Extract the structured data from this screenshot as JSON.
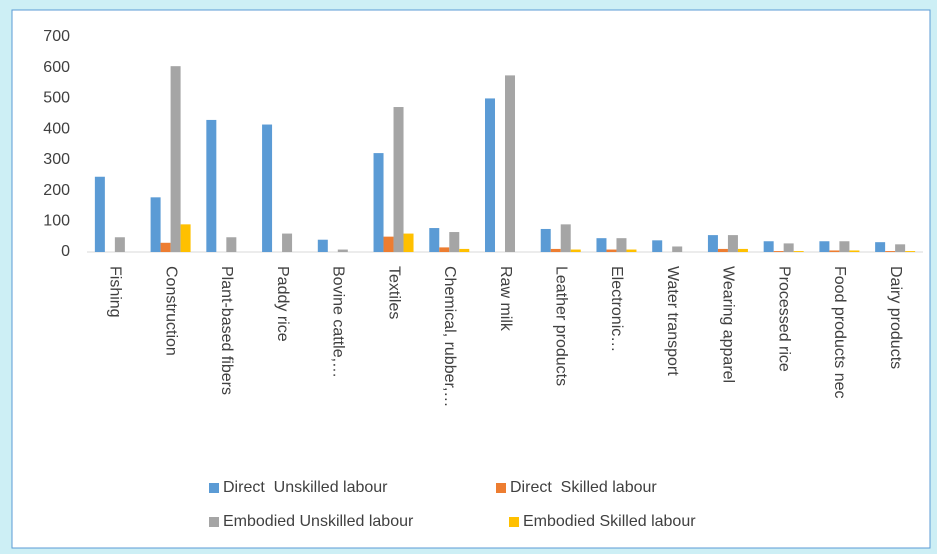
{
  "chart_data": {
    "type": "bar",
    "categories": [
      "Fishing",
      "Construction",
      "Plant-based fibers",
      "Paddy rice",
      "Bovine cattle,…",
      "Textiles",
      "Chemical, rubber,…",
      "Raw milk",
      "Leather products",
      "Electronic…",
      "Water transport",
      "Wearing apparel",
      "Processed rice",
      "Food products nec",
      "Dairy products"
    ],
    "series": [
      {
        "name": "Direct  Unskilled labour",
        "color": "#5b9bd5",
        "values": [
          245,
          178,
          430,
          415,
          40,
          322,
          78,
          500,
          75,
          45,
          38,
          55,
          35,
          35,
          32
        ]
      },
      {
        "name": "Direct  Skilled labour",
        "color": "#ed7d31",
        "values": [
          0,
          30,
          0,
          0,
          0,
          50,
          15,
          0,
          10,
          8,
          0,
          10,
          3,
          5,
          3
        ]
      },
      {
        "name": "Embodied Unskilled labour",
        "color": "#a5a5a5",
        "values": [
          48,
          605,
          48,
          60,
          8,
          472,
          65,
          575,
          90,
          45,
          18,
          55,
          28,
          35,
          25
        ]
      },
      {
        "name": "Embodied Skilled labour",
        "color": "#ffc000",
        "values": [
          0,
          90,
          0,
          0,
          0,
          60,
          10,
          0,
          8,
          8,
          0,
          10,
          3,
          5,
          3
        ]
      }
    ],
    "ylim": [
      0,
      700
    ],
    "yticks": [
      0,
      100,
      200,
      300,
      400,
      500,
      600,
      700
    ],
    "grid": false,
    "legend": "bottom"
  }
}
